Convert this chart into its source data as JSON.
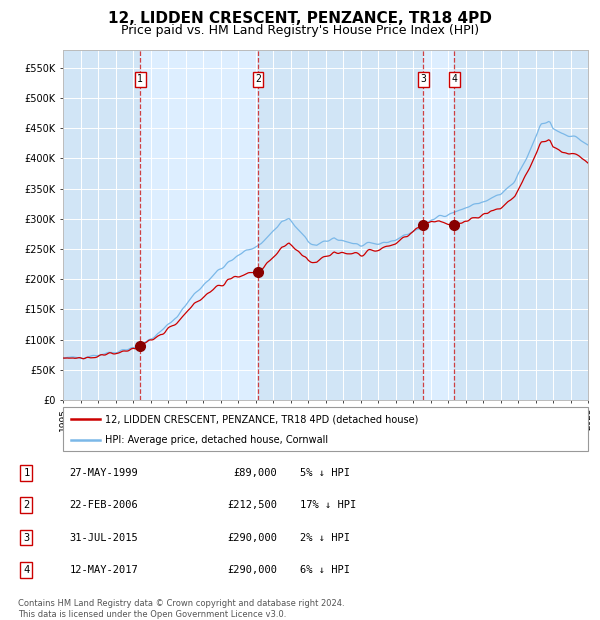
{
  "title": "12, LIDDEN CRESCENT, PENZANCE, TR18 4PD",
  "subtitle": "Price paid vs. HM Land Registry's House Price Index (HPI)",
  "title_fontsize": 11,
  "subtitle_fontsize": 9,
  "background_color": "#ffffff",
  "plot_bg_color": "#ddeeff",
  "grid_color": "#ffffff",
  "ylim": [
    0,
    580000
  ],
  "yticks": [
    0,
    50000,
    100000,
    150000,
    200000,
    250000,
    300000,
    350000,
    400000,
    450000,
    500000,
    550000
  ],
  "ytick_labels": [
    "£0",
    "£50K",
    "£100K",
    "£150K",
    "£200K",
    "£250K",
    "£300K",
    "£350K",
    "£400K",
    "£450K",
    "£500K",
    "£550K"
  ],
  "sale_dates_year": [
    1999.41,
    2006.14,
    2015.58,
    2017.36
  ],
  "sale_prices": [
    89000,
    212500,
    290000,
    290000
  ],
  "sale_labels": [
    "1",
    "2",
    "3",
    "4"
  ],
  "hpi_color": "#7bb8e8",
  "price_color": "#cc0000",
  "sale_marker_color": "#880000",
  "dashed_line_color": "#cc2222",
  "shade_color": "#c8dff0",
  "legend_entries": [
    "12, LIDDEN CRESCENT, PENZANCE, TR18 4PD (detached house)",
    "HPI: Average price, detached house, Cornwall"
  ],
  "table_rows": [
    [
      "1",
      "27-MAY-1999",
      "£89,000",
      "5% ↓ HPI"
    ],
    [
      "2",
      "22-FEB-2006",
      "£212,500",
      "17% ↓ HPI"
    ],
    [
      "3",
      "31-JUL-2015",
      "£290,000",
      "2% ↓ HPI"
    ],
    [
      "4",
      "12-MAY-2017",
      "£290,000",
      "6% ↓ HPI"
    ]
  ],
  "footnote": "Contains HM Land Registry data © Crown copyright and database right 2024.\nThis data is licensed under the Open Government Licence v3.0.",
  "x_start_year": 1995,
  "x_end_year": 2025
}
